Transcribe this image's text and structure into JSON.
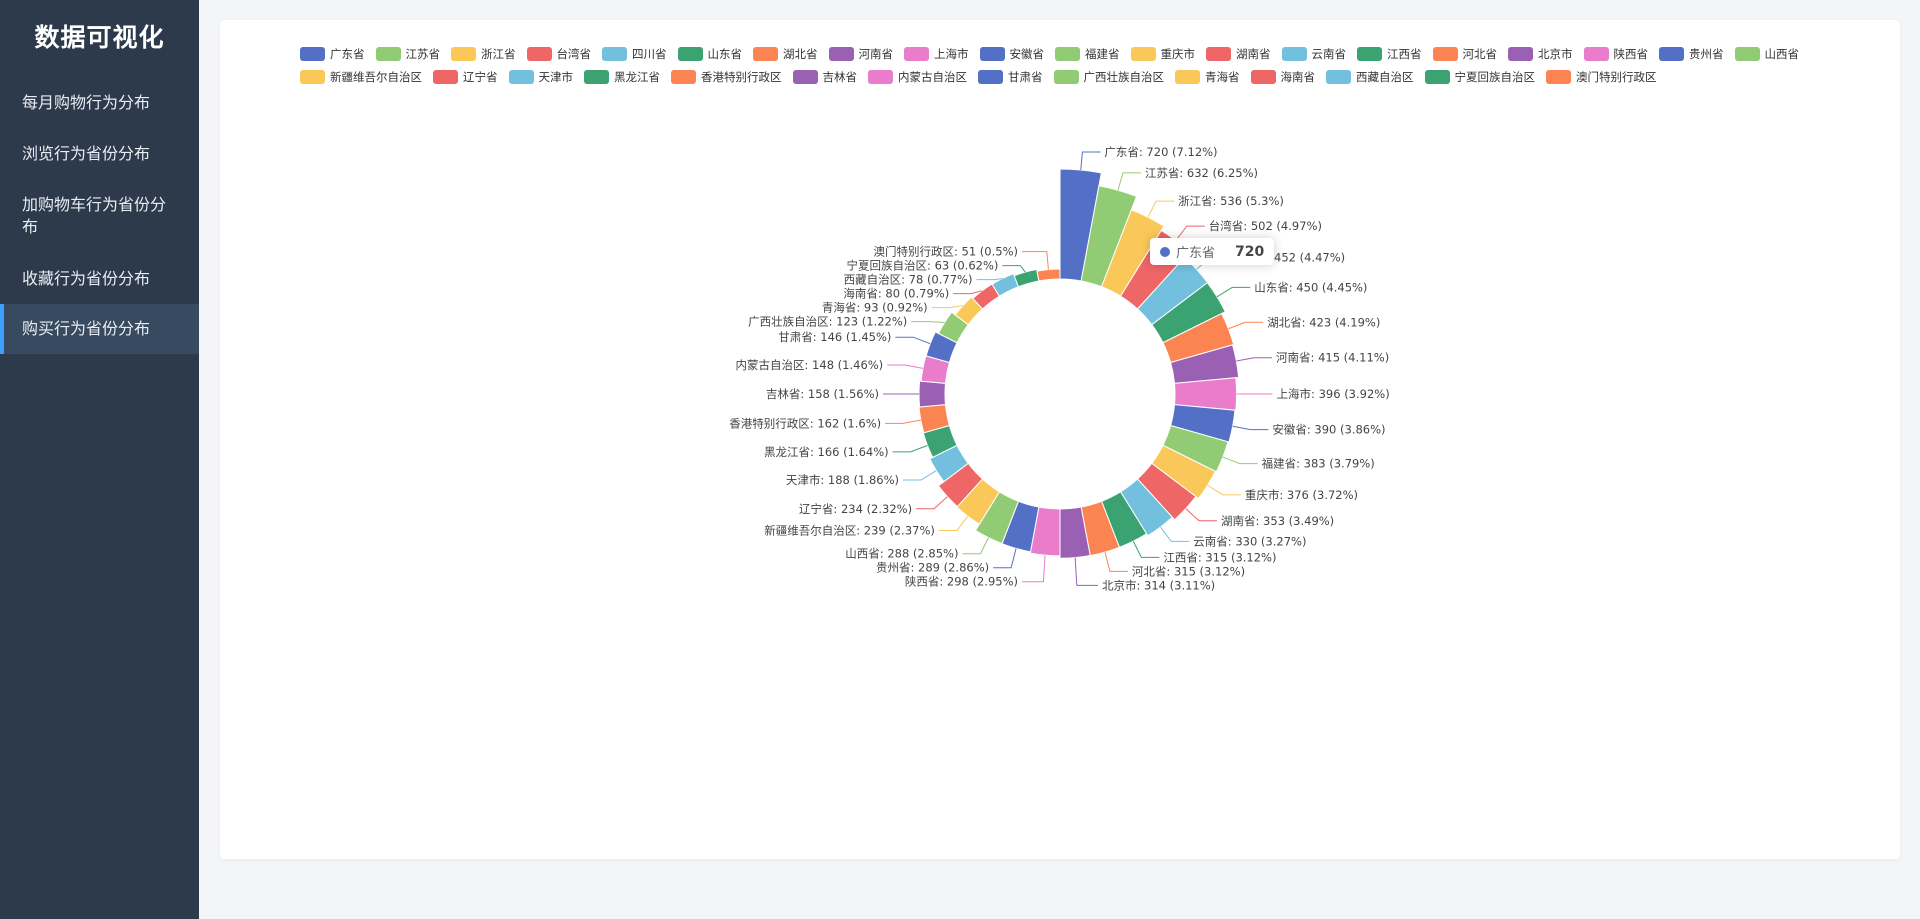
{
  "app": {
    "title": "数据可视化"
  },
  "nav": {
    "items": [
      {
        "label": "每月购物行为分布"
      },
      {
        "label": "浏览行为省份分布"
      },
      {
        "label": "加购物车行为省份分布"
      },
      {
        "label": "收藏行为省份分布"
      },
      {
        "label": "购买行为省份分布"
      }
    ],
    "active_index": 4
  },
  "tooltip": {
    "name": "广东省",
    "value": "720"
  },
  "colors": [
    "#5470c6",
    "#91cc75",
    "#fac858",
    "#ee6666",
    "#73c0de",
    "#3ba272",
    "#fc8452",
    "#9a60b4",
    "#ea7ccc"
  ],
  "chart_data": {
    "type": "pie",
    "subtype": "rose-donut",
    "label_format": "{name}: {value} ({percent}%)",
    "legend_placement": "top",
    "slices": [
      {
        "name": "广东省",
        "value": 720,
        "percent": "7.12"
      },
      {
        "name": "江苏省",
        "value": 632,
        "percent": "6.25"
      },
      {
        "name": "浙江省",
        "value": 536,
        "percent": "5.3"
      },
      {
        "name": "台湾省",
        "value": 502,
        "percent": "4.97"
      },
      {
        "name": "四川省",
        "value": 452,
        "percent": "4.47"
      },
      {
        "name": "山东省",
        "value": 450,
        "percent": "4.45"
      },
      {
        "name": "湖北省",
        "value": 423,
        "percent": "4.19"
      },
      {
        "name": "河南省",
        "value": 415,
        "percent": "4.11"
      },
      {
        "name": "上海市",
        "value": 396,
        "percent": "3.92"
      },
      {
        "name": "安徽省",
        "value": 390,
        "percent": "3.86"
      },
      {
        "name": "福建省",
        "value": 383,
        "percent": "3.79"
      },
      {
        "name": "重庆市",
        "value": 376,
        "percent": "3.72"
      },
      {
        "name": "湖南省",
        "value": 353,
        "percent": "3.49"
      },
      {
        "name": "云南省",
        "value": 330,
        "percent": "3.27"
      },
      {
        "name": "江西省",
        "value": 315,
        "percent": "3.12"
      },
      {
        "name": "河北省",
        "value": 315,
        "percent": "3.12"
      },
      {
        "name": "北京市",
        "value": 314,
        "percent": "3.11"
      },
      {
        "name": "陕西省",
        "value": 298,
        "percent": "2.95"
      },
      {
        "name": "贵州省",
        "value": 289,
        "percent": "2.86"
      },
      {
        "name": "山西省",
        "value": 288,
        "percent": "2.85"
      },
      {
        "name": "新疆维吾尔自治区",
        "value": 239,
        "percent": "2.37"
      },
      {
        "name": "辽宁省",
        "value": 234,
        "percent": "2.32"
      },
      {
        "name": "天津市",
        "value": 188,
        "percent": "1.86"
      },
      {
        "name": "黑龙江省",
        "value": 166,
        "percent": "1.64"
      },
      {
        "name": "香港特别行政区",
        "value": 162,
        "percent": "1.6"
      },
      {
        "name": "吉林省",
        "value": 158,
        "percent": "1.56"
      },
      {
        "name": "内蒙古自治区",
        "value": 148,
        "percent": "1.46"
      },
      {
        "name": "甘肃省",
        "value": 146,
        "percent": "1.45"
      },
      {
        "name": "广西壮族自治区",
        "value": 123,
        "percent": "1.22"
      },
      {
        "name": "青海省",
        "value": 93,
        "percent": "0.92"
      },
      {
        "name": "海南省",
        "value": 80,
        "percent": "0.79"
      },
      {
        "name": "西藏自治区",
        "value": 78,
        "percent": "0.77"
      },
      {
        "name": "宁夏回族自治区",
        "value": 63,
        "percent": "0.62"
      },
      {
        "name": "澳门特别行政区",
        "value": 51,
        "percent": "0.5"
      }
    ]
  }
}
